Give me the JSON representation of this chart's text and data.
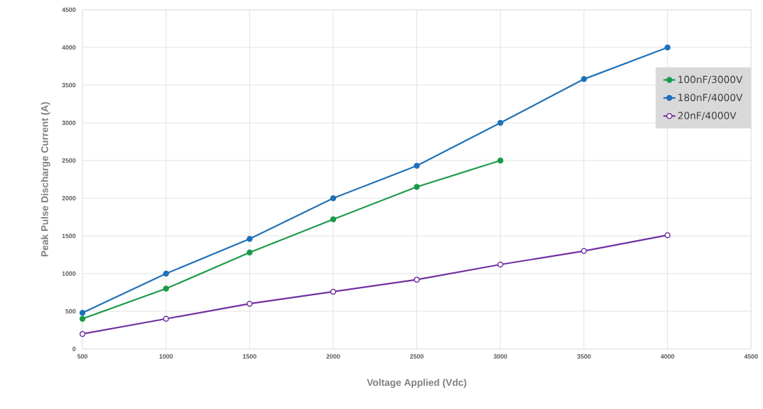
{
  "chart_data": {
    "type": "line",
    "xlabel": "Voltage Applied (Vdc)",
    "ylabel": "Peak Pulse Discharge Current (A)",
    "xlim": [
      500,
      4500
    ],
    "xticks": [
      500,
      1000,
      1500,
      2000,
      2500,
      3000,
      3500,
      4000,
      4500
    ],
    "ylim": [
      0,
      4500
    ],
    "yticks": [
      0,
      500,
      1000,
      1500,
      2000,
      2500,
      3000,
      3500,
      4000,
      4500
    ],
    "grid": true,
    "legend": "right",
    "marker": "circle",
    "line_style": "solid",
    "series": [
      {
        "name": "100nF/3000V",
        "color": "#1a9a48",
        "x": [
          500,
          1000,
          1500,
          2000,
          2500,
          3000
        ],
        "values": [
          400,
          800,
          1280,
          1720,
          2150,
          2500
        ]
      },
      {
        "name": "180nF/4000V",
        "color": "#1f70b8",
        "x": [
          500,
          1000,
          1500,
          2000,
          2500,
          3000,
          3500,
          4000
        ],
        "values": [
          480,
          1000,
          1460,
          2000,
          2430,
          3000,
          3580,
          4000
        ]
      },
      {
        "name": "20nF/4000V",
        "color": "#7030a0",
        "x": [
          500,
          1000,
          1500,
          2000,
          2500,
          3000,
          3500,
          4000
        ],
        "values": [
          200,
          400,
          600,
          760,
          920,
          1120,
          1300,
          1510
        ]
      }
    ]
  }
}
